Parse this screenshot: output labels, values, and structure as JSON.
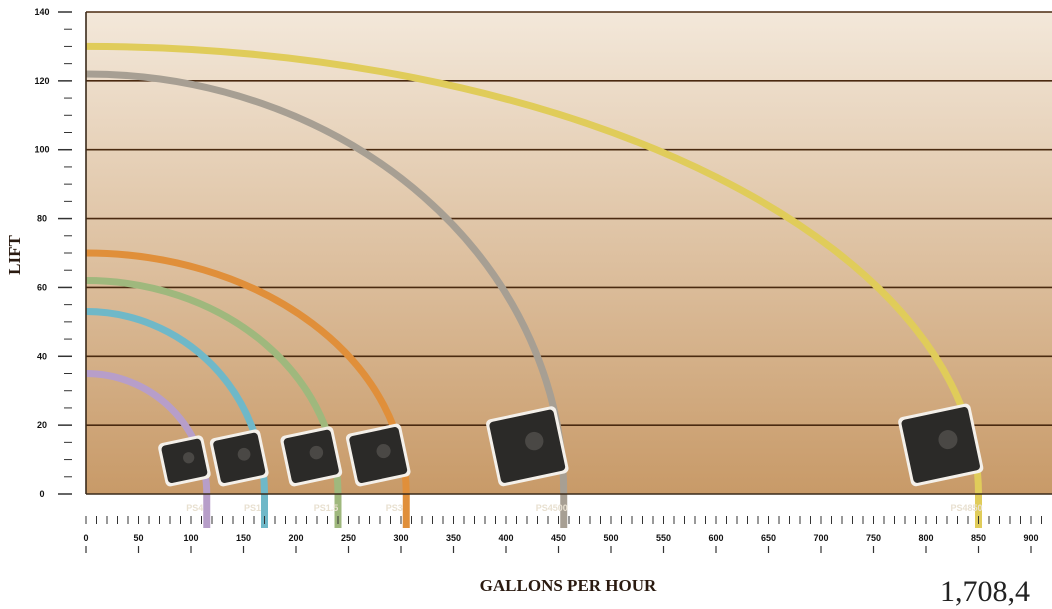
{
  "chart_data": {
    "type": "line",
    "xlabel": "GALLONS PER HOUR",
    "ylabel": "LIFT",
    "xlim": [
      0,
      920
    ],
    "ylim": [
      0,
      140
    ],
    "x_ticks": [
      "0",
      "50",
      "100",
      "150",
      "200",
      "250",
      "300",
      "350",
      "400",
      "450",
      "500",
      "550",
      "600",
      "650",
      "700",
      "750",
      "800",
      "850",
      "900"
    ],
    "y_ticks": [
      "0",
      "20",
      "40",
      "60",
      "80",
      "100",
      "120",
      "140"
    ],
    "grid": true,
    "series": [
      {
        "name": "PS4",
        "color": "#b79ec9",
        "max_lift": 35,
        "max_flow": 115
      },
      {
        "name": "PS1",
        "color": "#6fb8c8",
        "max_lift": 53,
        "max_flow": 170
      },
      {
        "name": "PS1.5",
        "color": "#9fb87d",
        "max_lift": 62,
        "max_flow": 240
      },
      {
        "name": "PS3",
        "color": "#e08f3a",
        "max_lift": 70,
        "max_flow": 305
      },
      {
        "name": "PS4500",
        "color": "#a79f93",
        "max_lift": 122,
        "max_flow": 455
      },
      {
        "name": "PS4850",
        "color": "#e0cc5a",
        "max_lift": 130,
        "max_flow": 850
      }
    ]
  },
  "footer": {
    "text": "1,708,4"
  }
}
